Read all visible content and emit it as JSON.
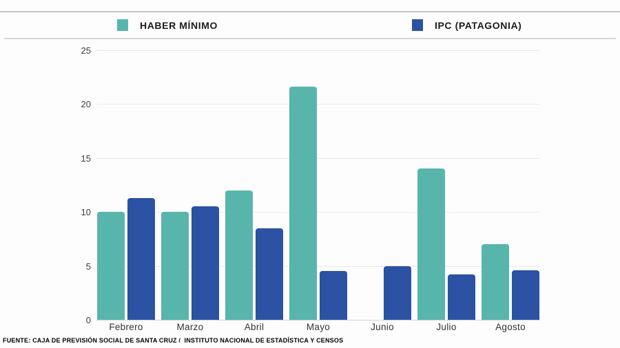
{
  "legend": {
    "items": [
      {
        "label": "HABER MÍNIMO",
        "color": "#58b5ac"
      },
      {
        "label": "IPC (PATAGONIA)",
        "color": "#2b52a3"
      }
    ]
  },
  "footer": {
    "source": "FUENTE: CAJA DE PREVISIÓN SOCIAL DE SANTA CRUZ /  INSTITUTO NACIONAL DE ESTADÍSTICA Y CENSOS"
  },
  "chart_data": {
    "type": "bar",
    "title": "",
    "xlabel": "",
    "ylabel": "",
    "categories": [
      "Febrero",
      "Marzo",
      "Abril",
      "Mayo",
      "Junio",
      "Julio",
      "Agosto"
    ],
    "series": [
      {
        "name": "HABER MÍNIMO",
        "color": "#58b5ac",
        "values": [
          10.0,
          10.0,
          12.0,
          21.6,
          null,
          14.0,
          7.0
        ]
      },
      {
        "name": "IPC (PATAGONIA)",
        "color": "#2b52a3",
        "values": [
          11.3,
          10.5,
          8.5,
          4.5,
          5.0,
          4.2,
          4.6
        ]
      }
    ],
    "ylim": [
      0,
      25
    ],
    "yticks": [
      0,
      5,
      10,
      15,
      20,
      25
    ],
    "grid": true,
    "legend_position": "top"
  }
}
